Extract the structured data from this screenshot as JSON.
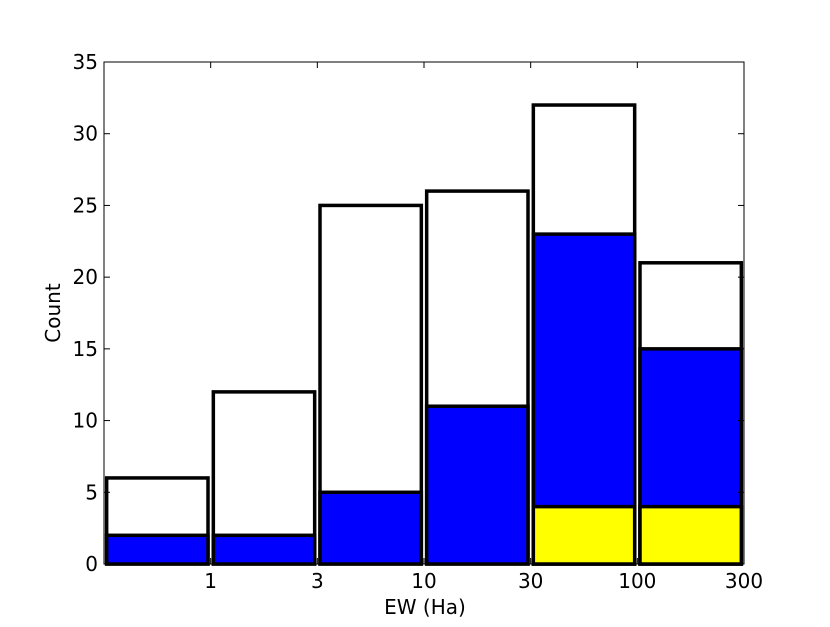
{
  "chart_data": {
    "type": "histogram",
    "x_label": "EW (Ha)",
    "y_label": "Count",
    "bins": [
      0,
      1,
      2,
      3,
      4,
      5,
      6
    ],
    "series": [
      {
        "color": "#ffffff",
        "values": [
          6,
          12,
          25,
          26,
          32,
          21
        ]
      },
      {
        "color": "#0000ff",
        "values": [
          2,
          2,
          5,
          11,
          23,
          15
        ]
      },
      {
        "color": "#ffff00",
        "values": [
          0,
          0,
          0,
          0,
          4,
          4
        ]
      }
    ],
    "xlim": [
      0,
      6
    ],
    "xticks": [
      {
        "value": 1,
        "label": "1"
      },
      {
        "value": 2,
        "label": "3"
      },
      {
        "value": 3,
        "label": "10"
      },
      {
        "value": 4,
        "label": "30"
      },
      {
        "value": 5,
        "label": "100"
      },
      {
        "value": 6,
        "label": "300"
      }
    ],
    "ylim": [
      0,
      35
    ],
    "yticks": [
      0,
      5,
      10,
      15,
      20,
      25,
      30,
      35
    ]
  }
}
